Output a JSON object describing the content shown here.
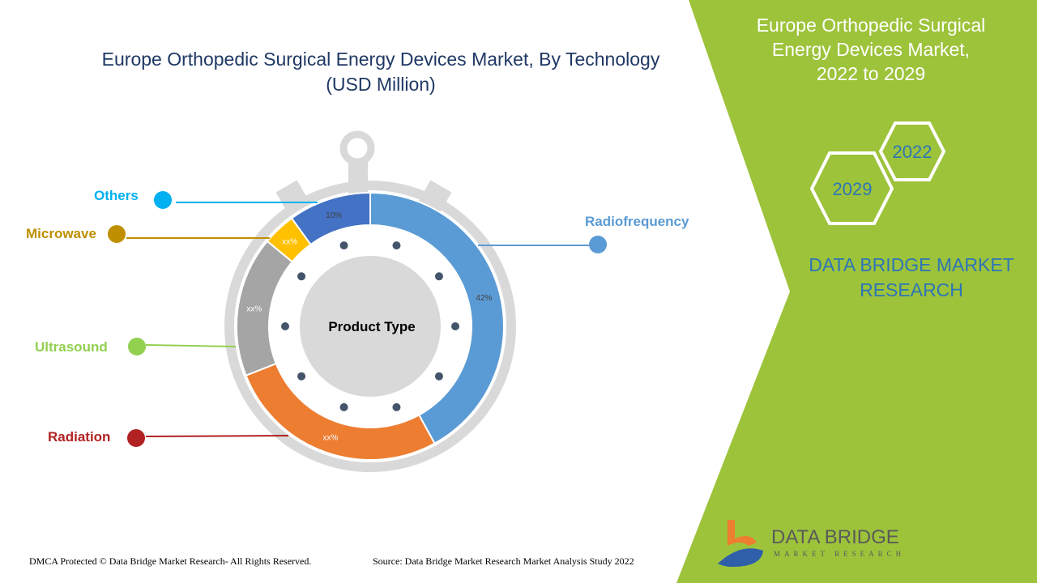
{
  "title": {
    "line1": "Europe Orthopedic Surgical Energy Devices Market, By Technology",
    "line2": "(USD Million)"
  },
  "side_panel": {
    "title_line1": "Europe Orthopedic Surgical",
    "title_line2": "Energy Devices Market,",
    "title_line3": "2022 to 2029",
    "hex_years": [
      "2022",
      "2029"
    ],
    "brand_line1": "DATA BRIDGE MARKET",
    "brand_line2": "RESEARCH",
    "logo_name": "DATA BRIDGE",
    "logo_sub": "MARKET RESEARCH",
    "panel_color": "#9dc33b"
  },
  "footer": {
    "dmca": "DMCA Protected © Data Bridge Market Research- All Rights Reserved.",
    "source": "Source: Data Bridge Market Research Market Analysis Study 2022"
  },
  "chart_data": {
    "type": "pie",
    "center_label": "Product Type",
    "slices": [
      {
        "name": "Radiofrequency",
        "label": "42%",
        "value": 42,
        "color": "#5b9bd5"
      },
      {
        "name": "Radiation",
        "label": "xx%",
        "value": 27,
        "color": "#ed7d31"
      },
      {
        "name": "Ultrasound",
        "label": "xx%",
        "value": 17,
        "color": "#a5a5a5"
      },
      {
        "name": "Microwave",
        "label": "xx%",
        "value": 4,
        "color": "#ffc000"
      },
      {
        "name": "Others",
        "label": "10%",
        "value": 10,
        "color": "#4472c4"
      }
    ],
    "legend_colors": {
      "Radiofrequency": "#5b9bd5",
      "Radiation": "#b22222",
      "Ultrasound": "#92d050",
      "Microwave": "#bf8f00",
      "Others": "#00b0f0"
    }
  }
}
